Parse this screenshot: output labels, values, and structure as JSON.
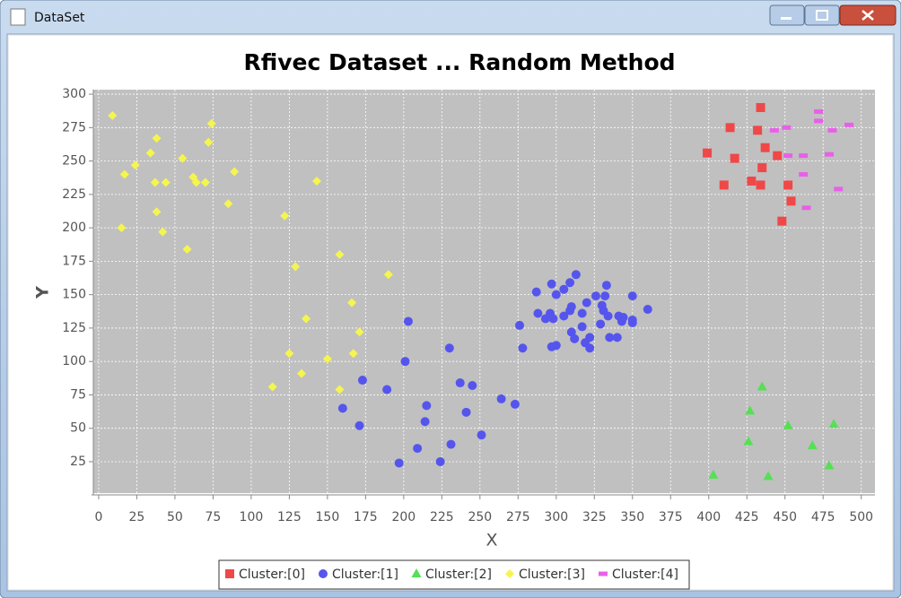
{
  "window": {
    "title": "DataSet"
  },
  "chart_data": {
    "type": "scatter",
    "title": "Rfivec Dataset ... Random Method",
    "x_label": "X",
    "y_label": "Y",
    "xlim": [
      -3.5,
      509
    ],
    "ylim": [
      1.5,
      303.4
    ],
    "xticks": [
      0,
      25,
      50,
      75,
      100,
      125,
      150,
      175,
      200,
      225,
      250,
      275,
      300,
      325,
      350,
      375,
      400,
      425,
      450,
      475,
      500
    ],
    "yticks": [
      25,
      50,
      75,
      100,
      125,
      150,
      175,
      200,
      225,
      250,
      275,
      300
    ],
    "grid": true,
    "series": [
      {
        "name": "Cluster:[0]",
        "color": "#f04848",
        "marker": "square",
        "x": [
          399,
          414,
          434,
          432,
          417,
          437,
          445,
          435,
          410,
          428,
          434,
          452,
          454,
          448
        ],
        "y": [
          256,
          275,
          290,
          273,
          252,
          260,
          254,
          245,
          232,
          235,
          232,
          232,
          220,
          205
        ]
      },
      {
        "name": "Cluster:[1]",
        "color": "#5555ee",
        "marker": "circle",
        "x": [
          203,
          230,
          201,
          173,
          189,
          237,
          245,
          160,
          215,
          214,
          241,
          264,
          273,
          171,
          251,
          231,
          209,
          197,
          224,
          276,
          278,
          287,
          288,
          293,
          296,
          298,
          297,
          300,
          297,
          300,
          305,
          309,
          313,
          310,
          309,
          305,
          310,
          312,
          317,
          320,
          317,
          319,
          322,
          322,
          326,
          330,
          333,
          332,
          331,
          329,
          334,
          335,
          340,
          341,
          344,
          343,
          350,
          350,
          350,
          360
        ],
        "y": [
          130,
          110,
          100,
          86,
          79,
          84,
          82,
          65,
          67,
          55,
          62,
          72,
          68,
          52,
          45,
          38,
          35,
          24,
          25,
          127,
          110,
          152,
          136,
          132,
          136,
          132,
          158,
          150,
          111,
          112,
          154,
          159,
          165,
          141,
          138,
          134,
          122,
          117,
          136,
          144,
          126,
          114,
          110,
          118,
          149,
          142,
          157,
          149,
          138,
          128,
          134,
          118,
          118,
          134,
          133,
          130,
          149,
          131,
          129,
          139
        ]
      },
      {
        "name": "Cluster:[2]",
        "color": "#55e055",
        "marker": "triangle",
        "x": [
          435,
          427,
          452,
          482,
          426,
          468,
          479,
          403,
          439
        ],
        "y": [
          81,
          63,
          52,
          53,
          40,
          37,
          22,
          15,
          14
        ]
      },
      {
        "name": "Cluster:[3]",
        "color": "#f5f550",
        "marker": "diamond",
        "x": [
          9,
          24,
          17,
          34,
          38,
          37,
          44,
          55,
          74,
          72,
          62,
          64,
          70,
          89,
          85,
          38,
          42,
          15,
          58,
          122,
          143,
          129,
          158,
          136,
          166,
          171,
          150,
          167,
          125,
          133,
          114,
          158,
          190
        ],
        "y": [
          284,
          247,
          240,
          256,
          267,
          234,
          234,
          252,
          278,
          264,
          238,
          234,
          234,
          242,
          218,
          212,
          197,
          200,
          184,
          209,
          235,
          171,
          180,
          132,
          144,
          122,
          102,
          106,
          106,
          91,
          81,
          79,
          165
        ]
      },
      {
        "name": "Cluster:[4]",
        "color": "#e860e8",
        "marker": "dash",
        "x": [
          472,
          472,
          443,
          451,
          492,
          481,
          452,
          462,
          479,
          462,
          485,
          464
        ],
        "y": [
          287,
          280,
          273,
          275,
          277,
          273,
          254,
          254,
          255,
          240,
          229,
          215
        ]
      }
    ]
  }
}
